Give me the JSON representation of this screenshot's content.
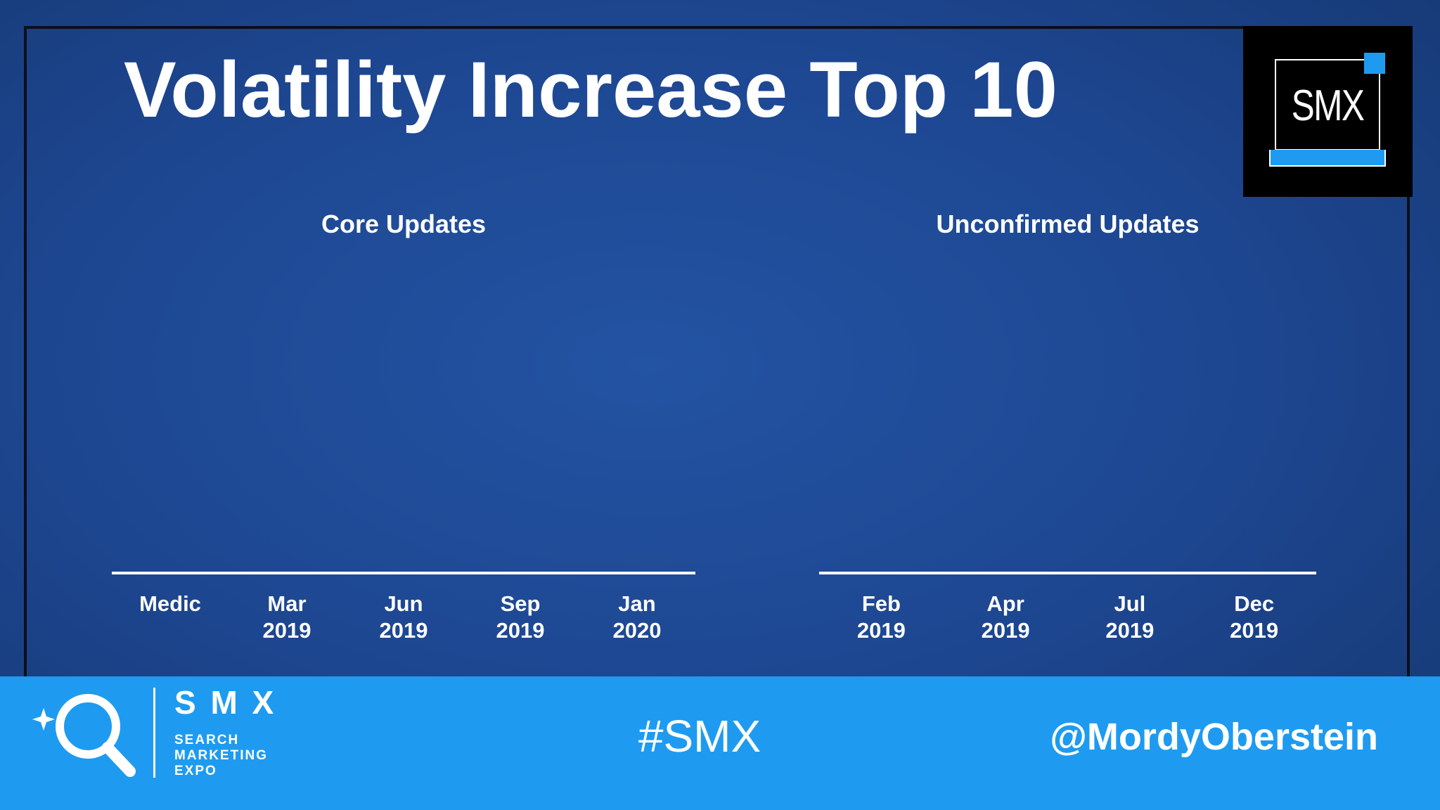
{
  "title": "Volatility Increase Top 10",
  "logo": "SMX",
  "chart_data": [
    {
      "type": "bar",
      "title": "Core Updates",
      "categories": [
        "Medic",
        "Mar 2019",
        "Jun 2019",
        "Sep 2019",
        "Jan 2020"
      ]
    },
    {
      "type": "bar",
      "title": "Unconfirmed Updates",
      "categories": [
        "Feb 2019",
        "Apr 2019",
        "Jul 2019",
        "Dec 2019"
      ]
    }
  ],
  "footer": {
    "brand": "S M X",
    "tagline": [
      "SEARCH",
      "MARKETING",
      "EXPO"
    ],
    "hashtag": "#SMX",
    "handle": "@MordyOberstein"
  }
}
